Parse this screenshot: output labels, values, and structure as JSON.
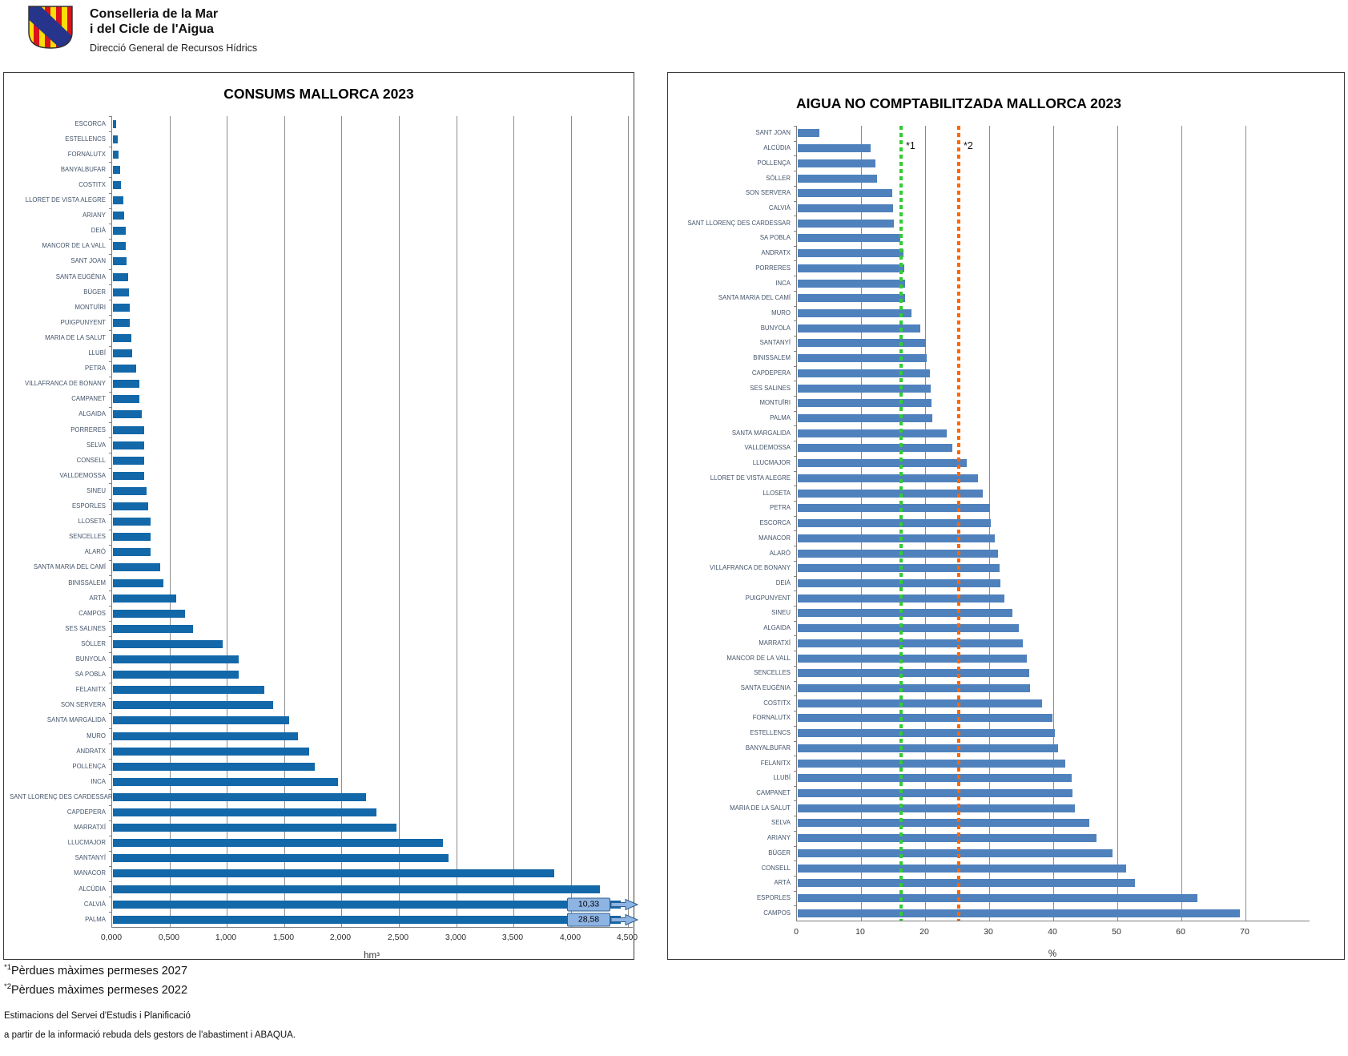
{
  "header": {
    "org_line1": "Conselleria de la Mar",
    "org_line2": "i del Cicle de l'Aigua",
    "org_line3": "Direcció General de Recursos Hídrics"
  },
  "chart_data": [
    {
      "id": "consums",
      "type": "bar",
      "orientation": "horizontal",
      "title": "CONSUMS MALLORCA 2023",
      "xlabel": "hm³",
      "xlim": [
        0,
        4.5
      ],
      "grid": true,
      "bar_color": "#1268A9",
      "x_tick_values": [
        0,
        0.5,
        1.0,
        1.5,
        2.0,
        2.5,
        3.0,
        3.5,
        4.0,
        4.5
      ],
      "x_tick_labels": [
        "0,000",
        "0,500",
        "1,000",
        "1,500",
        "2,000",
        "2,500",
        "3,000",
        "3,500",
        "4,000",
        "4,500"
      ],
      "categories": [
        "ESCORCA",
        "ESTELLENCS",
        "FORNALUTX",
        "BANYALBUFAR",
        "COSTITX",
        "LLORET DE VISTA ALEGRE",
        "ARIANY",
        "DEIÀ",
        "MANCOR DE LA VALL",
        "SANT JOAN",
        "SANTA EUGÈNIA",
        "BÚGER",
        "MONTUÏRI",
        "PUIGPUNYENT",
        "MARIA DE LA SALUT",
        "LLUBÍ",
        "PETRA",
        "VILLAFRANCA DE BONANY",
        "CAMPANET",
        "ALGAIDA",
        "PORRERES",
        "SELVA",
        "CONSELL",
        "VALLDEMOSSA",
        "SINEU",
        "ESPORLES",
        "LLOSETA",
        "SENCELLES",
        "ALARÓ",
        "SANTA MARIA DEL CAMÍ",
        "BINISSALEM",
        "ARTÀ",
        "CAMPOS",
        "SES SALINES",
        "SÓLLER",
        "BUNYOLA",
        "SA POBLA",
        "FELANITX",
        "SON SERVERA",
        "SANTA MARGALIDA",
        "MURO",
        "ANDRATX",
        "POLLENÇA",
        "INCA",
        "SANT LLORENÇ DES CARDESSAR",
        "CAPDEPERA",
        "MARRATXÍ",
        "LLUCMAJOR",
        "SANTANYÍ",
        "MANACOR",
        "ALCÚDIA",
        "CALVIÀ",
        "PALMA"
      ],
      "values": [
        0.03,
        0.04,
        0.05,
        0.06,
        0.07,
        0.09,
        0.1,
        0.11,
        0.11,
        0.12,
        0.13,
        0.14,
        0.15,
        0.15,
        0.16,
        0.17,
        0.2,
        0.23,
        0.23,
        0.25,
        0.27,
        0.27,
        0.27,
        0.27,
        0.29,
        0.31,
        0.33,
        0.33,
        0.33,
        0.41,
        0.44,
        0.55,
        0.63,
        0.7,
        0.96,
        1.1,
        1.1,
        1.32,
        1.4,
        1.54,
        1.61,
        1.71,
        1.76,
        1.96,
        2.21,
        2.3,
        2.47,
        2.88,
        2.93,
        3.85,
        4.25,
        10.33,
        28.58
      ],
      "clipped_bars": [
        {
          "category": "CALVIÀ",
          "data_label": "10,33"
        },
        {
          "category": "PALMA",
          "data_label": "28,58"
        }
      ]
    },
    {
      "id": "aigua_no_comptabilitzada",
      "type": "bar",
      "orientation": "horizontal",
      "title": "AIGUA NO COMPTABILITZADA MALLORCA 2023",
      "xlabel": "%",
      "xlim": [
        0,
        75
      ],
      "grid": true,
      "bar_color": "#4F81BD",
      "x_tick_values": [
        0,
        10,
        20,
        30,
        40,
        50,
        60,
        70
      ],
      "x_tick_labels": [
        "0",
        "10",
        "20",
        "30",
        "40",
        "50",
        "60",
        "70"
      ],
      "categories": [
        "SANT JOAN",
        "ALCÚDIA",
        "POLLENÇA",
        "SÓLLER",
        "SON SERVERA",
        "CALVIÀ",
        "SANT LLORENÇ DES CARDESSAR",
        "SA POBLA",
        "ANDRATX",
        "PORRERES",
        "INCA",
        "SANTA MARIA DEL CAMÍ",
        "MURO",
        "BUNYOLA",
        "SANTANYÍ",
        "BINISSALEM",
        "CAPDEPERA",
        "SES SALINES",
        "MONTUÏRI",
        "PALMA",
        "SANTA MARGALIDA",
        "VALLDEMOSSA",
        "LLUCMAJOR",
        "LLORET DE VISTA ALEGRE",
        "LLOSETA",
        "PETRA",
        "ESCORCA",
        "MANACOR",
        "ALARÓ",
        "VILLAFRANCA DE BONANY",
        "DEIÀ",
        "PUIGPUNYENT",
        "SINEU",
        "ALGAIDA",
        "MARRATXÍ",
        "MANCOR DE LA VALL",
        "SENCELLES",
        "SANTA EUGÈNIA",
        "COSTITX",
        "FORNALUTX",
        "ESTELLENCS",
        "BANYALBUFAR",
        "FELANITX",
        "LLUBÍ",
        "CAMPANET",
        "MARIA DE LA SALUT",
        "SELVA",
        "ARIANY",
        "BÚGER",
        "CONSELL",
        "ARTÀ",
        "ESPORLES",
        "CAMPOS"
      ],
      "values": [
        3.4,
        11.4,
        12.1,
        12.4,
        14.8,
        14.9,
        15.0,
        16.0,
        16.5,
        16.6,
        16.7,
        16.8,
        17.8,
        19.1,
        20.0,
        20.1,
        20.6,
        20.8,
        20.9,
        21.0,
        23.3,
        24.1,
        26.4,
        28.1,
        28.9,
        30.0,
        30.1,
        30.7,
        31.2,
        31.5,
        31.6,
        32.3,
        33.5,
        34.5,
        35.1,
        35.8,
        36.1,
        36.2,
        38.1,
        39.8,
        40.1,
        40.6,
        41.8,
        42.8,
        42.9,
        43.3,
        45.5,
        46.6,
        49.1,
        51.3,
        52.6,
        62.4,
        69.0
      ],
      "ref_lines": [
        {
          "label": "*1",
          "x": 16,
          "color": "#33CC33"
        },
        {
          "label": "*2",
          "x": 25,
          "color": "#FF6600"
        }
      ]
    }
  ],
  "footnotes": [
    {
      "sup": "*1",
      "text": "Pèrdues màximes permeses 2027"
    },
    {
      "sup": "*2",
      "text": "Pèrdues màximes permeses 2022"
    }
  ],
  "notes": [
    "Estimacions del Servei d'Estudis i Planificació",
    "a partir de la informació rebuda dels gestors de l'abastiment i ABAQUA."
  ],
  "colors": {
    "consums_bar": "#1268A9",
    "anc_bar": "#4F81BD",
    "ref_2027": "#33CC33",
    "ref_2022": "#FF6600",
    "callout_fill": "#8EB4E3",
    "callout_border": "#2E5F8F"
  }
}
